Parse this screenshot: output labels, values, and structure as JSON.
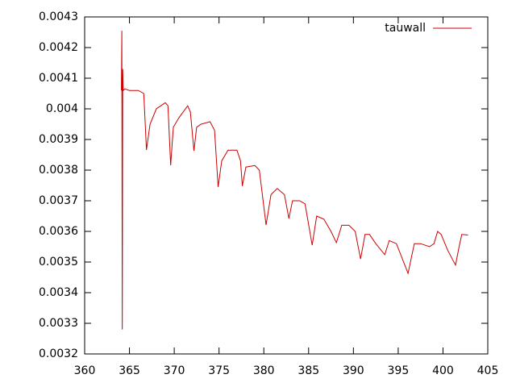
{
  "chart_data": {
    "type": "line",
    "legend": "top right",
    "grid": false,
    "xlim": [
      360,
      405
    ],
    "xticks": [
      360,
      365,
      370,
      375,
      380,
      385,
      390,
      395,
      400,
      405
    ],
    "ylim": [
      0.0032,
      0.0043
    ],
    "yticks": [
      0.0032,
      0.0033,
      0.0034,
      0.0035,
      0.0036,
      0.0037,
      0.0038,
      0.0039,
      0.004,
      0.0041,
      0.0042,
      0.0043
    ],
    "x": [
      364.1,
      364.15,
      364.2,
      364.25,
      364.3,
      364.5,
      365,
      366,
      366.6,
      366.9,
      367.3,
      368,
      369,
      369.3,
      369.6,
      369.9,
      370.5,
      371.5,
      371.8,
      372.2,
      372.5,
      373,
      374,
      374.5,
      374.9,
      375.3,
      376,
      377,
      377.4,
      377.6,
      378,
      379,
      379.5,
      380.25,
      380.8,
      381.5,
      382.3,
      382.8,
      383.2,
      384,
      384.6,
      385.4,
      385.9,
      386.7,
      387.5,
      388.1,
      388.7,
      389.5,
      390.2,
      390.8,
      391.3,
      391.8,
      392.5,
      393.5,
      394,
      394.8,
      396.1,
      396.8,
      397.5,
      398.5,
      399,
      399.4,
      399.8,
      400.5,
      401.4,
      401.8,
      402.1,
      402.8
    ],
    "series": [
      {
        "name": "tauwall",
        "color": "#cc0000",
        "values": [
          0.00406,
          0.004255,
          0.00328,
          0.00413,
          0.00406,
          0.004065,
          0.00406,
          0.00406,
          0.00405,
          0.003866,
          0.00395,
          0.004,
          0.00402,
          0.00401,
          0.003816,
          0.00394,
          0.00397,
          0.00401,
          0.00399,
          0.003863,
          0.00394,
          0.00395,
          0.003958,
          0.00393,
          0.003745,
          0.00383,
          0.003865,
          0.003865,
          0.00383,
          0.003748,
          0.00381,
          0.003815,
          0.0038,
          0.003621,
          0.00372,
          0.00374,
          0.00372,
          0.003642,
          0.0037,
          0.0037,
          0.00369,
          0.003555,
          0.00365,
          0.00364,
          0.0036,
          0.003563,
          0.00362,
          0.00362,
          0.0036,
          0.00351,
          0.00359,
          0.00359,
          0.00356,
          0.003524,
          0.00357,
          0.00356,
          0.003463,
          0.00356,
          0.00356,
          0.00355,
          0.00356,
          0.0036,
          0.00359,
          0.00354,
          0.00349,
          0.00355,
          0.00359,
          0.003588
        ]
      }
    ]
  }
}
